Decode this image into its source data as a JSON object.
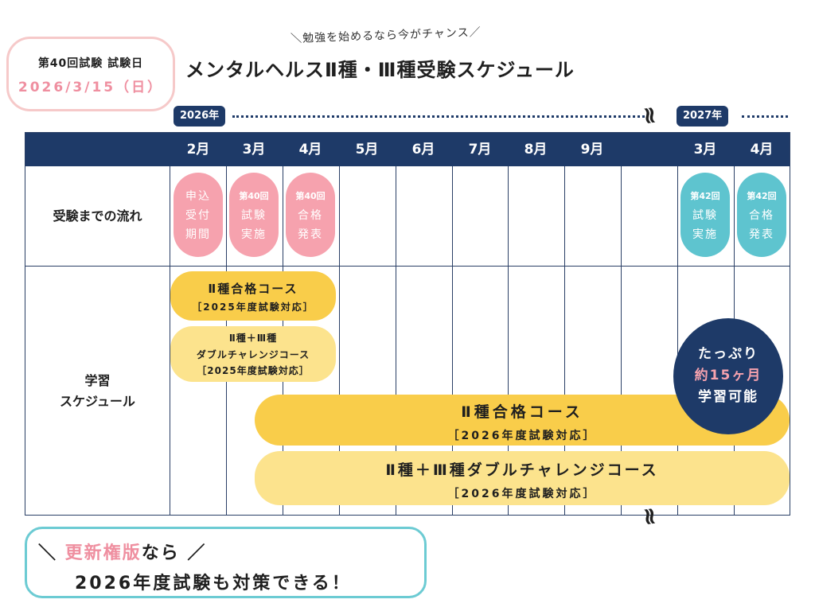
{
  "exam_badge": {
    "line1": "第40回試験 試験日",
    "line2": "2026/3/15（日）"
  },
  "subtitle": "＼勉強を始めるなら今がチャンス／",
  "title": "メンタルヘルスⅡ種・Ⅲ種受験スケジュール",
  "years": {
    "y2026": "2026年",
    "y2027": "2027年"
  },
  "squiggle": "≀≀",
  "months": [
    "2月",
    "3月",
    "4月",
    "5月",
    "6月",
    "7月",
    "8月",
    "9月",
    "",
    "3月",
    "4月"
  ],
  "rows": {
    "flow": "受験までの流れ",
    "study_line1": "学習",
    "study_line2": "スケジュール"
  },
  "flow_items": [
    {
      "lines": [
        "申込",
        "受付",
        "期間"
      ],
      "color": "#f6a2ae"
    },
    {
      "lines": [
        "第40回",
        "試験",
        "実施"
      ],
      "color": "#f6a2ae"
    },
    {
      "lines": [
        "第40回",
        "合格",
        "発表"
      ],
      "color": "#f6a2ae"
    },
    {
      "lines": [
        "第42回",
        "試験",
        "実施"
      ],
      "color": "#5ec4cf"
    },
    {
      "lines": [
        "第42回",
        "合格",
        "発表"
      ],
      "color": "#5ec4cf"
    }
  ],
  "courses": {
    "c2025_a": {
      "l1": "Ⅱ種合格コース",
      "l2": "［2025年度試験対応］"
    },
    "c2025_b": {
      "l1": "Ⅱ種＋Ⅲ種",
      "l2": "ダブルチャレンジコース",
      "l3": "［2025年度試験対応］"
    },
    "c2026_a": {
      "l1": "Ⅱ種合格コース",
      "l2": "［2026年度試験対応］"
    },
    "c2026_b": {
      "l1": "Ⅱ種＋Ⅲ種ダブルチャレンジコース",
      "l2": "［2026年度試験対応］"
    }
  },
  "circle": {
    "l1": "たっぷり",
    "l2": "約15ヶ月",
    "l3": "学習可能"
  },
  "callout": {
    "prefix": "＼ ",
    "highlight": "更新権版",
    "rest": "なら ／",
    "line2": "2026年度試験も対策できる！"
  },
  "colors": {
    "navy": "#1e3a68",
    "pink": "#f6a2ae",
    "teal": "#5ec4cf",
    "gold": "#f9cd4a",
    "lightgold": "#fce38d"
  }
}
